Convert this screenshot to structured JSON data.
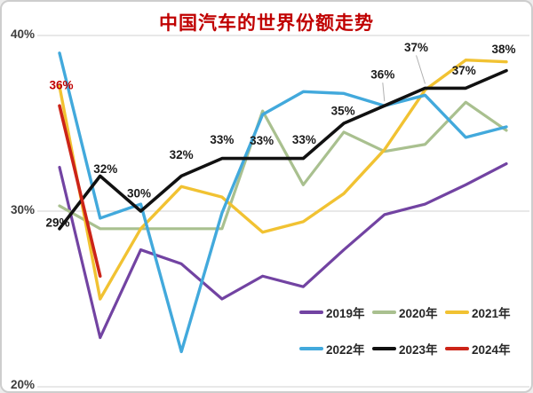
{
  "window": {
    "background": "#ffffff",
    "border_color": "#cdcdcd"
  },
  "chart_data": {
    "type": "line",
    "title": "中国汽车的世界份额走势",
    "title_color": "#c00000",
    "x_count": 12,
    "x_tick_labels_visible": false,
    "ylim": [
      20,
      40
    ],
    "yticks": [
      {
        "label": "40%",
        "value": 40
      },
      {
        "label": "30%",
        "value": 30
      },
      {
        "label": "20%",
        "value": 20
      }
    ],
    "grid": "horizontal-only",
    "gridline_color": "#d9d9d9",
    "legend_position": "bottom-right-two-rows",
    "series": [
      {
        "name": "2019年",
        "color": "#7243a2",
        "width": 3.2,
        "values": [
          32.5,
          22.8,
          27.8,
          27.0,
          25.0,
          26.3,
          25.7,
          27.8,
          29.8,
          30.4,
          31.5,
          32.7
        ]
      },
      {
        "name": "2020年",
        "color": "#a9c08f",
        "width": 3.2,
        "values": [
          30.3,
          29.0,
          29.0,
          29.0,
          29.0,
          35.7,
          31.5,
          34.5,
          33.4,
          33.8,
          36.2,
          34.6
        ]
      },
      {
        "name": "2021年",
        "color": "#f1c232",
        "width": 3.4,
        "values": [
          37.1,
          25.0,
          29.0,
          31.4,
          30.8,
          28.8,
          29.4,
          31.0,
          33.5,
          36.9,
          38.6,
          38.5
        ]
      },
      {
        "name": "2022年",
        "color": "#42a9dc",
        "width": 3.4,
        "values": [
          39.0,
          29.6,
          30.4,
          22.0,
          29.9,
          35.5,
          36.8,
          36.7,
          36.0,
          36.6,
          34.2,
          34.8
        ]
      },
      {
        "name": "2023年",
        "color": "#111111",
        "width": 3.6,
        "values": [
          29,
          32,
          30,
          32,
          33,
          33,
          33,
          35,
          36,
          37,
          37,
          38
        ],
        "point_labels": [
          {
            "text": "29%",
            "dx": -2,
            "dy": -7
          },
          {
            "text": "32%",
            "dx": 6,
            "dy": -8
          },
          {
            "text": "30%",
            "dx": -2,
            "dy": -20
          },
          {
            "text": "32%",
            "dx": 0,
            "dy": -24
          },
          {
            "text": "33%",
            "dx": 0,
            "dy": -21
          },
          {
            "text": "33%",
            "dx": -1,
            "dy": -20
          },
          {
            "text": "33%",
            "dx": 1,
            "dy": -21
          },
          {
            "text": "35%",
            "dx": -1,
            "dy": -14
          },
          {
            "text": "36%",
            "dx": -2,
            "dy": -35
          },
          {
            "text": "37%",
            "dx": -10,
            "dy": -46
          },
          {
            "text": "37%",
            "dx": -2,
            "dy": -20
          },
          {
            "text": "38%",
            "dx": -3,
            "dy": -24
          }
        ]
      },
      {
        "name": "2024年",
        "color": "#cc2418",
        "width": 3.6,
        "values": [
          36,
          26.3
        ],
        "point_labels": [
          {
            "text": "36%",
            "dx": 2,
            "dy": -23,
            "color": "#c00000"
          },
          null
        ]
      }
    ]
  }
}
